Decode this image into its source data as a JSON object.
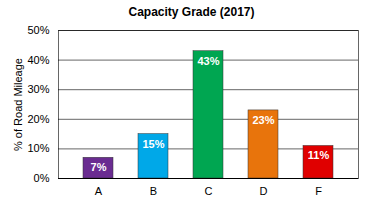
{
  "chart_data": {
    "type": "bar",
    "title": "Capacity Grade (2017)",
    "y_label": "% of Road Mileage",
    "categories": [
      "A",
      "B",
      "C",
      "D",
      "F"
    ],
    "values": [
      7,
      15,
      43,
      23,
      11
    ],
    "value_labels": [
      "7%",
      "15%",
      "43%",
      "23%",
      "11%"
    ],
    "colors": [
      "#6a2c91",
      "#00a8e8",
      "#00a651",
      "#e8740c",
      "#e00000"
    ],
    "ylim": [
      0,
      50
    ],
    "yticks": [
      {
        "value": 0,
        "label": "0%"
      },
      {
        "value": 10,
        "label": "10%"
      },
      {
        "value": 20,
        "label": "20%"
      },
      {
        "value": 30,
        "label": "30%"
      },
      {
        "value": 40,
        "label": "40%"
      },
      {
        "value": 50,
        "label": "50%"
      }
    ],
    "grid": true,
    "data_labels": true
  }
}
